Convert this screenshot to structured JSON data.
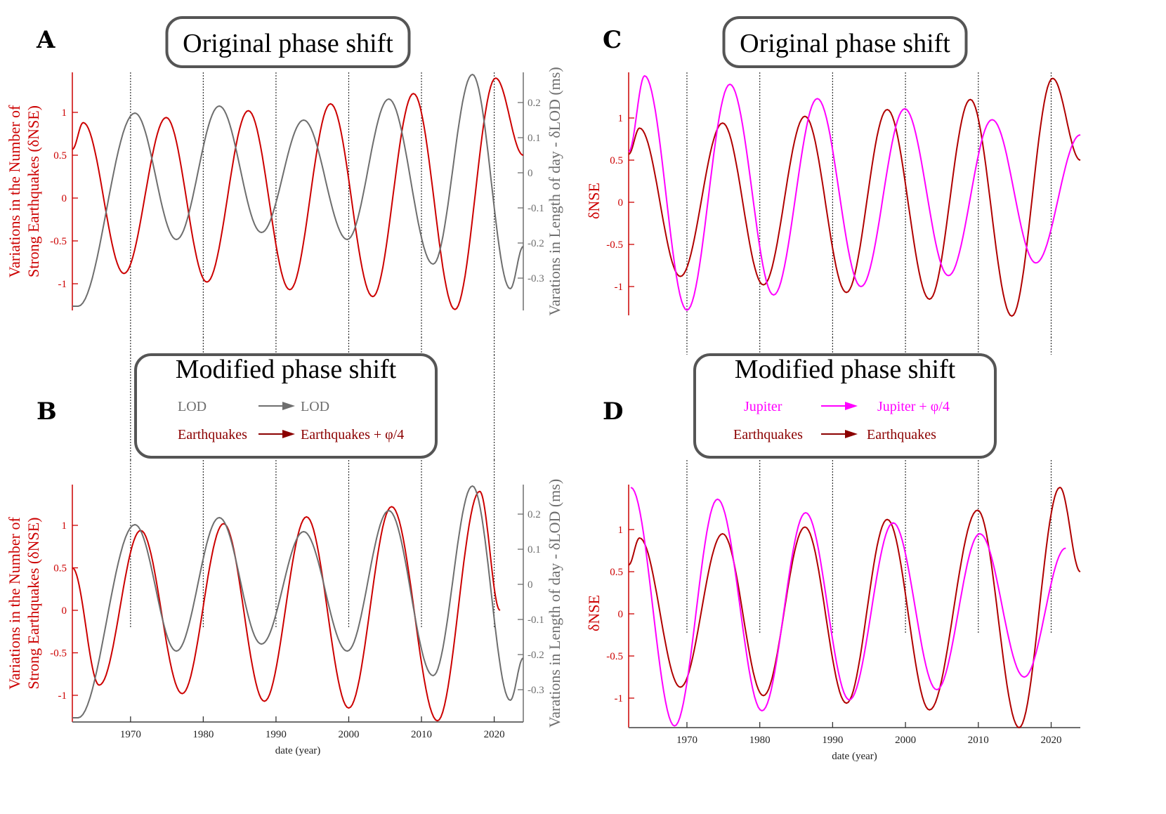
{
  "figure": {
    "panels": {
      "A": {
        "letter": "A",
        "title": "Original phase shift"
      },
      "B": {
        "letter": "B",
        "title": "Modified phase shift",
        "legend": [
          {
            "from": "LOD",
            "to": "LOD",
            "color": "#6e6e6e"
          },
          {
            "from": "Earthquakes",
            "to": "Earthquakes + φ/4",
            "color": "#8b0000"
          }
        ]
      },
      "C": {
        "letter": "C",
        "title": "Original phase shift"
      },
      "D": {
        "letter": "D",
        "title": "Modified phase shift",
        "legend": [
          {
            "from": "Jupiter",
            "to": "Jupiter + φ/4",
            "color": "#ff00ff"
          },
          {
            "from": "Earthquakes",
            "to": "Earthquakes",
            "color": "#8b0000"
          }
        ]
      }
    },
    "colors": {
      "earthquakes_bright": "#cc0000",
      "earthquakes_dark": "#b00000",
      "lod": "#6e6e6e",
      "jupiter": "#ff00ff",
      "axis": "#6e6e6e",
      "grid": "#333333"
    }
  },
  "chart_data": [
    {
      "id": "A",
      "type": "line",
      "title": "Original phase shift",
      "xlabel": "",
      "ylabel": "Variations in the Number of Strong Earthquakes (δNSE)",
      "y2label": "Varations in Length of day - δLOD (ms)",
      "xlim": [
        1962,
        2024
      ],
      "ylim": [
        -1.3,
        1.4
      ],
      "y2lim": [
        -0.38,
        0.28
      ],
      "yticks": [
        "-1",
        "-0.5",
        "0",
        "0.5",
        "1"
      ],
      "y2ticks": [
        "-0.3",
        "-0.2",
        "-0.1",
        "0",
        "0.1",
        "0.2"
      ],
      "xgrid": [
        1970,
        1980,
        1990,
        2000,
        2010,
        2020
      ],
      "grid_style": "dotted vertical",
      "series": [
        {
          "name": "Earthquakes",
          "axis": "left",
          "color": "#cc0000",
          "extrema": [
            [
              1962,
              0.57
            ],
            [
              1963.5,
              0.88
            ],
            [
              1969.1,
              -0.88
            ],
            [
              1974.9,
              0.94
            ],
            [
              1980.5,
              -0.98
            ],
            [
              1986.2,
              1.02
            ],
            [
              1991.9,
              -1.07
            ],
            [
              1997.5,
              1.1
            ],
            [
              2003.3,
              -1.15
            ],
            [
              2008.9,
              1.22
            ],
            [
              2014.6,
              -1.3
            ],
            [
              2020.2,
              1.4
            ],
            [
              2024,
              0.5
            ]
          ]
        },
        {
          "name": "LOD",
          "axis": "right",
          "color": "#6e6e6e",
          "extrema": [
            [
              1962,
              -0.38
            ],
            [
              1962.8,
              -0.38
            ],
            [
              1970.6,
              0.17
            ],
            [
              1976.3,
              -0.19
            ],
            [
              1982.2,
              0.19
            ],
            [
              1988.0,
              -0.17
            ],
            [
              1993.8,
              0.15
            ],
            [
              1999.8,
              -0.19
            ],
            [
              2005.5,
              0.21
            ],
            [
              2011.6,
              -0.26
            ],
            [
              2017.0,
              0.28
            ],
            [
              2022.2,
              -0.33
            ],
            [
              2024,
              -0.21
            ]
          ]
        }
      ]
    },
    {
      "id": "B",
      "type": "line",
      "title": "Modified phase shift",
      "xlabel": "date (year)",
      "ylabel": "Variations in the Number of Strong Earthquakes (δNSE)",
      "y2label": "Varations in Length of day - δLOD (ms)",
      "xlim": [
        1962,
        2024
      ],
      "ylim": [
        -1.3,
        1.4
      ],
      "y2lim": [
        -0.38,
        0.28
      ],
      "xticks": [
        "1970",
        "1980",
        "1990",
        "2000",
        "2010",
        "2020"
      ],
      "yticks": [
        "-1",
        "-0.5",
        "0",
        "0.5",
        "1"
      ],
      "y2ticks": [
        "-0.3",
        "-0.2",
        "-0.1",
        "0",
        "0.1",
        "0.2"
      ],
      "xgrid": [
        1970,
        1980,
        1990,
        2000,
        2010,
        2020
      ],
      "grid_style": "dotted vertical (upper part)",
      "series": [
        {
          "name": "Earthquakes + φ/4",
          "axis": "left",
          "color": "#cc0000",
          "extrema": [
            [
              1962,
              0.5
            ],
            [
              1965.7,
              -0.88
            ],
            [
              1971.4,
              0.94
            ],
            [
              1977.1,
              -0.98
            ],
            [
              1982.8,
              1.02
            ],
            [
              1988.4,
              -1.07
            ],
            [
              1994.2,
              1.1
            ],
            [
              2000.0,
              -1.15
            ],
            [
              2005.9,
              1.22
            ],
            [
              2012.2,
              -1.3
            ],
            [
              2018.0,
              1.4
            ],
            [
              2020.8,
              0.0
            ]
          ]
        },
        {
          "name": "LOD",
          "axis": "right",
          "color": "#6e6e6e",
          "extrema": [
            [
              1962,
              -0.38
            ],
            [
              1962.8,
              -0.38
            ],
            [
              1970.6,
              0.17
            ],
            [
              1976.3,
              -0.19
            ],
            [
              1982.2,
              0.19
            ],
            [
              1988.0,
              -0.17
            ],
            [
              1993.8,
              0.15
            ],
            [
              1999.8,
              -0.19
            ],
            [
              2005.5,
              0.21
            ],
            [
              2011.6,
              -0.26
            ],
            [
              2017.0,
              0.28
            ],
            [
              2022.2,
              -0.33
            ],
            [
              2024,
              -0.21
            ]
          ]
        }
      ]
    },
    {
      "id": "C",
      "type": "line",
      "title": "Original phase shift",
      "xlabel": "",
      "ylabel": "δNSE",
      "xlim": [
        1962,
        2024
      ],
      "ylim": [
        -1.35,
        1.5
      ],
      "yticks": [
        "-1",
        "-0.5",
        "0",
        "0.5",
        "1"
      ],
      "xgrid": [
        1970,
        1980,
        1990,
        2000,
        2010,
        2020
      ],
      "grid_style": "dotted vertical",
      "series": [
        {
          "name": "Earthquakes",
          "color": "#b00000",
          "extrema": [
            [
              1962,
              0.57
            ],
            [
              1963.5,
              0.88
            ],
            [
              1969.1,
              -0.88
            ],
            [
              1974.9,
              0.94
            ],
            [
              1980.5,
              -0.98
            ],
            [
              1986.2,
              1.02
            ],
            [
              1991.9,
              -1.07
            ],
            [
              1997.5,
              1.1
            ],
            [
              2003.3,
              -1.15
            ],
            [
              2008.9,
              1.22
            ],
            [
              2014.6,
              -1.35
            ],
            [
              2020.2,
              1.47
            ],
            [
              2024,
              0.5
            ]
          ]
        },
        {
          "name": "Jupiter",
          "color": "#ff00ff",
          "extrema": [
            [
              1962,
              0.6
            ],
            [
              1964.2,
              1.5
            ],
            [
              1970.0,
              -1.28
            ],
            [
              1975.9,
              1.4
            ],
            [
              1981.9,
              -1.1
            ],
            [
              1987.9,
              1.23
            ],
            [
              1993.9,
              -1.0
            ],
            [
              1999.9,
              1.11
            ],
            [
              2005.9,
              -0.87
            ],
            [
              2011.9,
              0.98
            ],
            [
              2017.9,
              -0.72
            ],
            [
              2024,
              0.8
            ]
          ]
        }
      ]
    },
    {
      "id": "D",
      "type": "line",
      "title": "Modified phase shift",
      "xlabel": "date (year)",
      "ylabel": "δNSE",
      "xlim": [
        1962,
        2024
      ],
      "ylim": [
        -1.35,
        1.5
      ],
      "xticks": [
        "1970",
        "1980",
        "1990",
        "2000",
        "2010",
        "2020"
      ],
      "yticks": [
        "-1",
        "-0.5",
        "0",
        "0.5",
        "1"
      ],
      "xgrid": [
        1970,
        1980,
        1990,
        2000,
        2010,
        2020
      ],
      "grid_style": "dotted vertical (upper part)",
      "series": [
        {
          "name": "Earthquakes",
          "color": "#b00000",
          "extrema": [
            [
              1962,
              0.58
            ],
            [
              1963.5,
              0.9
            ],
            [
              1969.1,
              -0.87
            ],
            [
              1974.9,
              0.95
            ],
            [
              1980.5,
              -0.97
            ],
            [
              1986.2,
              1.03
            ],
            [
              1991.9,
              -1.06
            ],
            [
              1997.5,
              1.12
            ],
            [
              2003.3,
              -1.14
            ],
            [
              2009.9,
              1.23
            ],
            [
              2015.6,
              -1.35
            ],
            [
              2021.2,
              1.5
            ],
            [
              2024,
              0.5
            ]
          ]
        },
        {
          "name": "Jupiter + φ/4",
          "color": "#ff00ff",
          "extrema": [
            [
              1962.3,
              1.5
            ],
            [
              1968.3,
              -1.33
            ],
            [
              1974.2,
              1.36
            ],
            [
              1980.3,
              -1.15
            ],
            [
              1986.3,
              1.2
            ],
            [
              1992.3,
              -1.02
            ],
            [
              1998.3,
              1.08
            ],
            [
              2004.3,
              -0.9
            ],
            [
              2010.2,
              0.95
            ],
            [
              2016.3,
              -0.75
            ],
            [
              2022,
              0.78
            ]
          ]
        }
      ]
    }
  ],
  "axis_labels": {
    "left_long": [
      "Variations in the Number of",
      "Strong Earthquakes (δNSE)"
    ],
    "right_long": "Varations in Length of day - δLOD (ms)",
    "left_short": "δNSE",
    "x": "date (year)"
  }
}
